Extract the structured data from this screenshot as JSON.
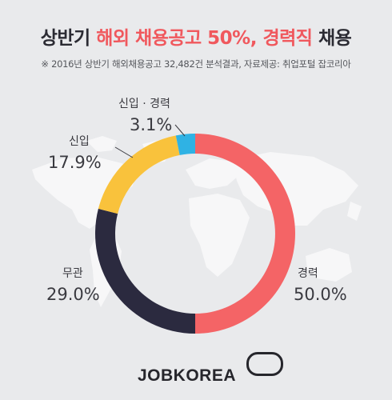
{
  "header": {
    "title_prefix": "상반기 ",
    "title_highlight": "해외 채용공고 50%, 경력직",
    "title_suffix": " 채용",
    "subtitle": "※ 2016년 상반기 해외채용공고 32,482건 분석결과, 자료제공: 취업포털 잡코리아"
  },
  "logo": {
    "text": "JOBKOREA"
  },
  "colors": {
    "background": "#e9eaec",
    "map": "#f7f7f8",
    "experienced": "#f46466",
    "any": "#2b2a3f",
    "new": "#f9c23c",
    "new_or_experienced": "#2fb2e4",
    "text": "#3a3a40"
  },
  "chart_data": {
    "type": "pie",
    "donut": true,
    "categories": [
      "경력",
      "무관",
      "신입",
      "신입 · 경력"
    ],
    "values": [
      50.0,
      29.0,
      17.9,
      3.1
    ],
    "value_labels": [
      "50.0%",
      "29.0%",
      "17.9%",
      "3.1%"
    ],
    "colors": [
      "#f46466",
      "#2b2a3f",
      "#f9c23c",
      "#2fb2e4"
    ],
    "title": "상반기 해외 채용공고 50%, 경력직 채용",
    "start": "12 o'clock",
    "direction": "clockwise"
  }
}
